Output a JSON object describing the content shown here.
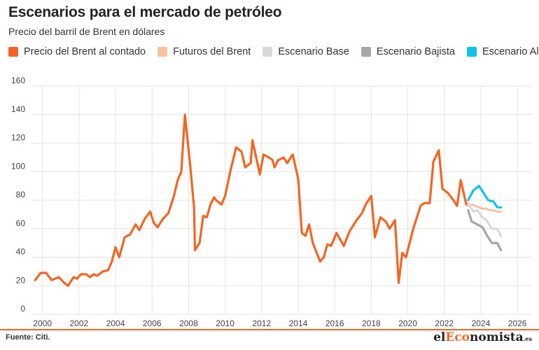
{
  "title": "Escenarios para el mercado de petróleo",
  "subtitle": "Precio del barril de Brent en dólares",
  "source": "Fuente: Citi.",
  "logo": {
    "pre": "el",
    "accent": "Eco",
    "post": "nomista",
    "suffix": ".es"
  },
  "colors": {
    "brent_spot": "#f26522",
    "futures": "#f9c3a3",
    "base": "#d9d9d9",
    "bear": "#a6a6a6",
    "bull": "#12c1ee",
    "grid": "#e3e3e3",
    "axis": "#444444"
  },
  "chart_data": {
    "type": "line",
    "title": "Escenarios para el mercado de petróleo",
    "subtitle": "Precio del barril de Brent en dólares",
    "xlabel": "",
    "ylabel": "",
    "xlim": [
      1999.4,
      2026.8
    ],
    "ylim": [
      0,
      160
    ],
    "yticks": [
      0,
      20,
      40,
      60,
      80,
      100,
      120,
      140,
      160
    ],
    "xticks": [
      2000,
      2002,
      2004,
      2006,
      2008,
      2010,
      2012,
      2014,
      2016,
      2018,
      2020,
      2022,
      2024,
      2026
    ],
    "grid": true,
    "legend_position": "top",
    "series": [
      {
        "name": "Precio del Brent al contado",
        "color_key": "brent_spot",
        "points": [
          [
            1999.6,
            24
          ],
          [
            1999.9,
            29
          ],
          [
            2000.2,
            29
          ],
          [
            2000.5,
            24
          ],
          [
            2000.9,
            26
          ],
          [
            2001.2,
            22
          ],
          [
            2001.4,
            20
          ],
          [
            2001.7,
            26
          ],
          [
            2001.9,
            25
          ],
          [
            2002.1,
            28
          ],
          [
            2002.4,
            28
          ],
          [
            2002.6,
            26
          ],
          [
            2002.8,
            28
          ],
          [
            2003.0,
            27
          ],
          [
            2003.3,
            30
          ],
          [
            2003.6,
            31
          ],
          [
            2003.8,
            37
          ],
          [
            2004.0,
            47
          ],
          [
            2004.2,
            40
          ],
          [
            2004.5,
            54
          ],
          [
            2004.8,
            56
          ],
          [
            2005.1,
            63
          ],
          [
            2005.3,
            59
          ],
          [
            2005.6,
            67
          ],
          [
            2005.9,
            72
          ],
          [
            2006.1,
            64
          ],
          [
            2006.3,
            61
          ],
          [
            2006.6,
            67
          ],
          [
            2006.9,
            71
          ],
          [
            2007.2,
            83
          ],
          [
            2007.4,
            94
          ],
          [
            2007.6,
            100
          ],
          [
            2007.8,
            140
          ],
          [
            2008.1,
            103
          ],
          [
            2008.3,
            75
          ],
          [
            2008.35,
            45
          ],
          [
            2008.6,
            50
          ],
          [
            2008.8,
            69
          ],
          [
            2009.0,
            68
          ],
          [
            2009.2,
            77
          ],
          [
            2009.4,
            82
          ],
          [
            2009.5,
            80
          ],
          [
            2009.8,
            77
          ],
          [
            2010.0,
            83
          ],
          [
            2010.3,
            101
          ],
          [
            2010.6,
            117
          ],
          [
            2010.9,
            114
          ],
          [
            2011.1,
            103
          ],
          [
            2011.4,
            106
          ],
          [
            2011.5,
            122
          ],
          [
            2011.9,
            98
          ],
          [
            2012.1,
            112
          ],
          [
            2012.4,
            110
          ],
          [
            2012.6,
            108
          ],
          [
            2012.7,
            103
          ],
          [
            2012.9,
            108
          ],
          [
            2013.2,
            110
          ],
          [
            2013.4,
            106
          ],
          [
            2013.7,
            112
          ],
          [
            2014.0,
            95
          ],
          [
            2014.2,
            57
          ],
          [
            2014.4,
            55
          ],
          [
            2014.6,
            63
          ],
          [
            2014.8,
            50
          ],
          [
            2015.2,
            37
          ],
          [
            2015.4,
            40
          ],
          [
            2015.6,
            49
          ],
          [
            2015.8,
            48
          ],
          [
            2016.1,
            57
          ],
          [
            2016.5,
            48
          ],
          [
            2016.8,
            58
          ],
          [
            2017.2,
            66
          ],
          [
            2017.5,
            71
          ],
          [
            2017.7,
            77
          ],
          [
            2018.0,
            83
          ],
          [
            2018.2,
            54
          ],
          [
            2018.5,
            68
          ],
          [
            2018.8,
            65
          ],
          [
            2019.0,
            60
          ],
          [
            2019.3,
            66
          ],
          [
            2019.5,
            22
          ],
          [
            2019.7,
            43
          ],
          [
            2019.9,
            40
          ],
          [
            2020.3,
            60
          ],
          [
            2020.7,
            76
          ],
          [
            2020.9,
            78
          ],
          [
            2021.2,
            78
          ],
          [
            2021.4,
            107
          ],
          [
            2021.7,
            115
          ],
          [
            2021.9,
            88
          ],
          [
            2022.2,
            85
          ],
          [
            2022.5,
            80
          ],
          [
            2022.7,
            76
          ],
          [
            2022.9,
            94
          ],
          [
            2023.2,
            77
          ]
        ]
      },
      {
        "name": "Futuros del Brent",
        "color_key": "futures",
        "points": [
          [
            2023.3,
            76
          ],
          [
            2023.5,
            77
          ],
          [
            2023.7,
            76
          ],
          [
            2023.9,
            75
          ],
          [
            2024.1,
            74
          ],
          [
            2024.3,
            74
          ],
          [
            2024.5,
            73
          ],
          [
            2024.7,
            73
          ],
          [
            2024.9,
            72
          ],
          [
            2025.1,
            72
          ]
        ]
      },
      {
        "name": "Escenario Base",
        "color_key": "base",
        "points": [
          [
            2023.3,
            78
          ],
          [
            2023.6,
            72
          ],
          [
            2023.8,
            73
          ],
          [
            2024.1,
            68
          ],
          [
            2024.3,
            66
          ],
          [
            2024.6,
            60
          ],
          [
            2024.9,
            60
          ],
          [
            2025.1,
            55
          ]
        ]
      },
      {
        "name": "Escenario Bajista",
        "color_key": "bear",
        "points": [
          [
            2023.3,
            73
          ],
          [
            2023.5,
            65
          ],
          [
            2023.8,
            63
          ],
          [
            2024.1,
            61
          ],
          [
            2024.3,
            56
          ],
          [
            2024.6,
            50
          ],
          [
            2024.9,
            50
          ],
          [
            2025.1,
            45
          ]
        ]
      },
      {
        "name": "Escenario Alcista",
        "color_key": "bull",
        "points": [
          [
            2023.3,
            80
          ],
          [
            2023.6,
            87
          ],
          [
            2023.9,
            90
          ],
          [
            2024.2,
            84
          ],
          [
            2024.4,
            80
          ],
          [
            2024.7,
            79
          ],
          [
            2024.9,
            75
          ],
          [
            2025.1,
            75
          ]
        ]
      }
    ]
  }
}
